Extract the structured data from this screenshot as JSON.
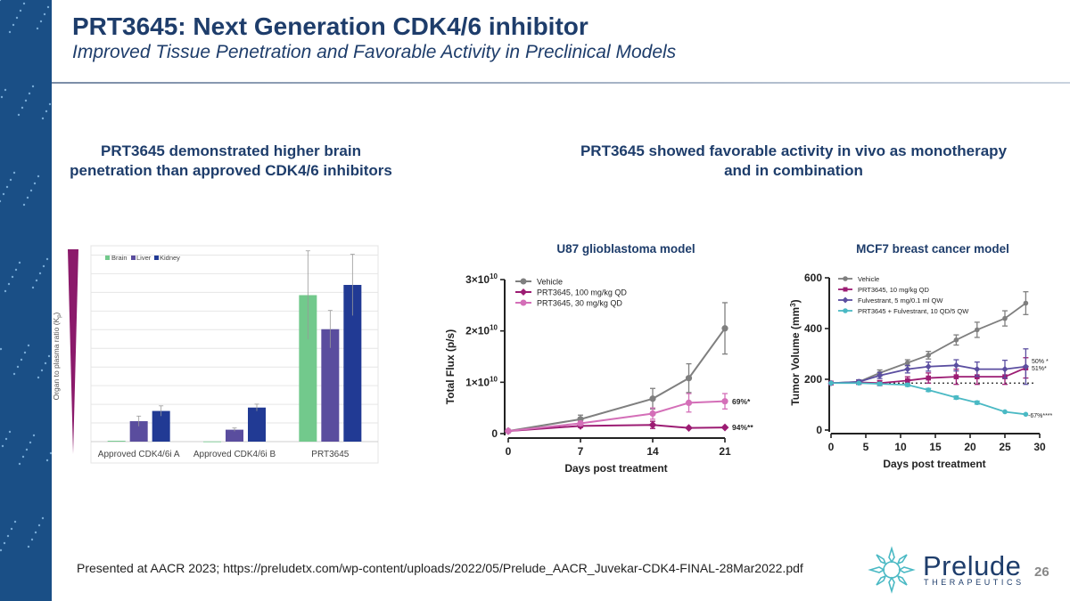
{
  "header": {
    "title": "PRT3645: Next Generation CDK4/6 inhibitor",
    "subtitle": "Improved Tissue Penetration and Favorable Activity in Preclinical Models"
  },
  "left_heading": "PRT3645 demonstrated higher brain penetration than approved CDK4/6 inhibitors",
  "right_heading": "PRT3645 showed favorable activity in vivo as monotherapy and in combination",
  "footer": {
    "citation": "Presented at AACR 2023; https://preludetx.com/wp-content/uploads/2022/05/Prelude_AACR_Juvekar-CDK4-FINAL-28Mar2022.pdf",
    "page_number": "26",
    "logo_name": "Prelude",
    "logo_tagline": "THERAPEUTICS"
  },
  "colors": {
    "brand_navy": "#1e3d6b",
    "band_blue": "#1a4f86",
    "wedge_magenta": "#8b1a6b"
  },
  "chart_data": [
    {
      "type": "bar",
      "title": "",
      "ylabel": "Organ to plasma ratio (Kp)",
      "ylabel_main": "Organ to plasma ratio (K",
      "ylabel_sub": "p",
      "ylabel_close": ")",
      "categories": [
        "Approved CDK4/6i A",
        "Approved CDK4/6i B",
        "PRT3645"
      ],
      "ylim": [
        0,
        11.5
      ],
      "grid": true,
      "legend": "top-left",
      "series": [
        {
          "name": "Brain",
          "color": "#72c98c",
          "values": [
            0.05,
            0.01,
            8.6
          ],
          "errors": [
            0.02,
            0.01,
            2.6
          ]
        },
        {
          "name": "Liver",
          "color": "#5a4d9e",
          "values": [
            1.2,
            0.7,
            6.6
          ],
          "errors": [
            0.3,
            0.1,
            1.1
          ]
        },
        {
          "name": "Kidney",
          "color": "#213a94",
          "values": [
            1.8,
            2.0,
            9.2
          ],
          "errors": [
            0.3,
            0.2,
            1.8
          ]
        }
      ]
    },
    {
      "type": "line",
      "title": "U87 glioblastoma model",
      "xlabel": "Days post treatment",
      "ylabel": "Total Flux (p/s)",
      "xlim": [
        0,
        21
      ],
      "ylim": [
        0,
        30000000000
      ],
      "xticks": [
        "0",
        "7",
        "14",
        "21"
      ],
      "xtick_values": [
        0,
        7,
        14,
        21
      ],
      "ytick_values": [
        0,
        10000000000,
        20000000000,
        30000000000
      ],
      "yticks": [
        {
          "main": "0",
          "exp": ""
        },
        {
          "main": "1×10",
          "exp": "10"
        },
        {
          "main": "2×10",
          "exp": "10"
        },
        {
          "main": "3×10",
          "exp": "10"
        }
      ],
      "legend": "top-left",
      "series": [
        {
          "name": "Vehicle",
          "color": "#7f7f7f",
          "marker": "circle",
          "x": [
            0,
            7,
            14,
            17.5,
            21
          ],
          "y": [
            500000000,
            2800000000,
            6800000000,
            10800000000,
            20500000000
          ],
          "err": [
            100000000,
            800000000,
            2000000000,
            2800000000,
            5000000000
          ]
        },
        {
          "name": "PRT3645, 100 mg/kg QD",
          "color": "#9c1c73",
          "marker": "diamond",
          "x": [
            0,
            7,
            14,
            17.5,
            21
          ],
          "y": [
            500000000,
            1500000000,
            1700000000,
            1100000000,
            1200000000
          ],
          "err": [
            100000000,
            300000000,
            700000000,
            200000000,
            200000000
          ]
        },
        {
          "name": "PRT3645, 30 mg/kg QD",
          "color": "#d46fb8",
          "marker": "circle",
          "x": [
            0,
            7,
            14,
            17.5,
            21
          ],
          "y": [
            500000000,
            2000000000,
            3900000000,
            6000000000,
            6300000000
          ],
          "err": [
            100000000,
            400000000,
            1100000000,
            1800000000,
            1500000000
          ]
        }
      ],
      "annotations": [
        "69%*",
        "94%**"
      ]
    },
    {
      "type": "line",
      "title": "MCF7 breast cancer model",
      "xlabel": "Days post treatment",
      "ylabel": "Tumor Volume (mm3)",
      "ylabel_main": "Tumor Volume (mm",
      "ylabel_sup": "3",
      "ylabel_close": ")",
      "xlim": [
        0,
        30
      ],
      "ylim": [
        0,
        600
      ],
      "xticks": [
        "0",
        "5",
        "10",
        "15",
        "20",
        "25",
        "30"
      ],
      "xtick_values": [
        0,
        5,
        10,
        15,
        20,
        25,
        30
      ],
      "yticks": [
        "0",
        "200",
        "400",
        "600"
      ],
      "ytick_values": [
        0,
        200,
        400,
        600
      ],
      "reference_line": 185,
      "legend": "top-left",
      "series": [
        {
          "name": "Vehicle",
          "color": "#7f7f7f",
          "marker": "circle",
          "x": [
            0,
            4,
            7,
            11,
            14,
            18,
            21,
            25,
            28
          ],
          "y": [
            185,
            190,
            225,
            265,
            295,
            355,
            395,
            440,
            500
          ],
          "err": [
            5,
            8,
            12,
            12,
            15,
            20,
            30,
            30,
            45
          ]
        },
        {
          "name": "PRT3645, 10 mg/kg QD",
          "color": "#9c1c73",
          "marker": "square",
          "x": [
            0,
            4,
            7,
            11,
            14,
            18,
            21,
            25,
            28
          ],
          "y": [
            185,
            188,
            185,
            195,
            205,
            210,
            210,
            210,
            245
          ],
          "err": [
            5,
            8,
            10,
            15,
            20,
            30,
            30,
            30,
            40
          ]
        },
        {
          "name": "Fulvestrant, 5 mg/0.1 ml QW",
          "color": "#5b4ea0",
          "marker": "diamond",
          "x": [
            0,
            4,
            7,
            11,
            14,
            18,
            21,
            25,
            28
          ],
          "y": [
            185,
            190,
            215,
            240,
            250,
            255,
            240,
            240,
            250
          ],
          "err": [
            5,
            8,
            12,
            15,
            18,
            22,
            28,
            35,
            70
          ]
        },
        {
          "name": "PRT3645 + Fulvestrant, 10 QD/5 QW",
          "color": "#4ab9c4",
          "marker": "circle",
          "x": [
            0,
            4,
            7,
            11,
            14,
            18,
            21,
            25,
            28
          ],
          "y": [
            185,
            185,
            182,
            178,
            158,
            128,
            108,
            72,
            62
          ],
          "err": [
            5,
            5,
            6,
            6,
            6,
            6,
            6,
            5,
            5
          ]
        }
      ],
      "annotations": [
        "50% *",
        "51%*",
        "-67%****"
      ]
    }
  ]
}
